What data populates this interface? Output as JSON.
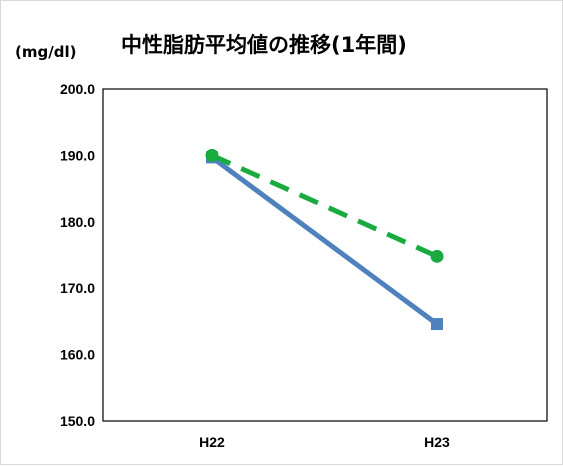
{
  "chart_data": {
    "type": "line",
    "title": "中性脂肪平均値の推移(1年間)",
    "ylabel": "(mg/dl)",
    "xlabel": "",
    "categories": [
      "H22",
      "H23"
    ],
    "ylim": [
      150.0,
      200.0
    ],
    "yticks": [
      "150.0",
      "160.0",
      "170.0",
      "180.0",
      "190.0",
      "200.0"
    ],
    "grid": false,
    "legend": "none",
    "series": [
      {
        "values": [
          189.7,
          164.6
        ],
        "color": "#4f81bd",
        "line": "solid",
        "marker": "square"
      },
      {
        "values": [
          190.0,
          174.8
        ],
        "color": "#1aab40",
        "line": "dashed",
        "marker": "circle"
      }
    ]
  }
}
